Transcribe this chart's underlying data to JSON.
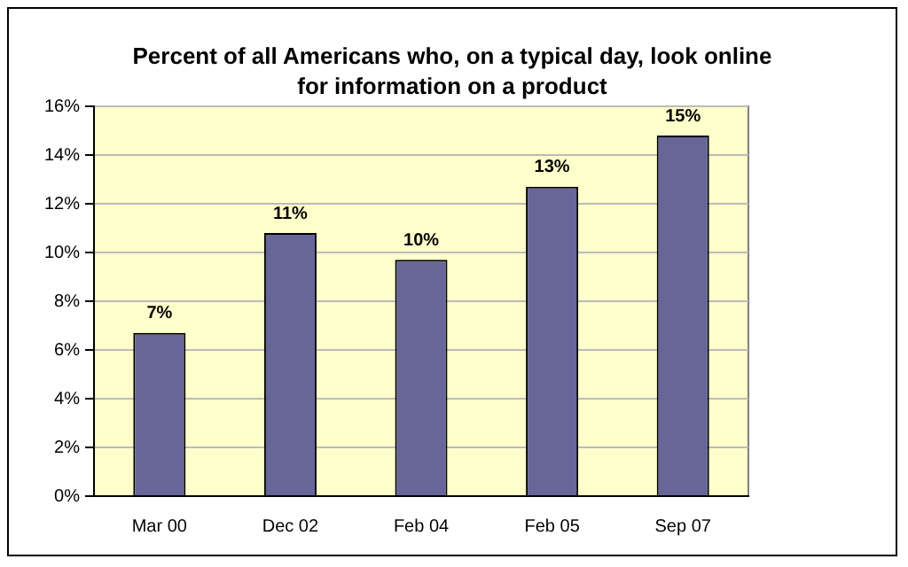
{
  "chart_data": {
    "type": "bar",
    "title": "Percent of all Americans who, on a typical day, look online for information on a product",
    "categories": [
      "Mar 00",
      "Dec 02",
      "Feb 04",
      "Feb 05",
      "Sep 07"
    ],
    "values": [
      6.7,
      10.8,
      9.7,
      12.7,
      14.8
    ],
    "value_labels": [
      "7%",
      "11%",
      "10%",
      "13%",
      "15%"
    ],
    "color": "#666699",
    "ylim": [
      0,
      16
    ],
    "yticks": [
      {
        "value": 0,
        "label": "0%"
      },
      {
        "value": 2,
        "label": "2%"
      },
      {
        "value": 4,
        "label": "4%"
      },
      {
        "value": 6,
        "label": "6%"
      },
      {
        "value": 8,
        "label": "8%"
      },
      {
        "value": 10,
        "label": "10%"
      },
      {
        "value": 12,
        "label": "12%"
      },
      {
        "value": 14,
        "label": "14%"
      },
      {
        "value": 16,
        "label": "16%"
      }
    ],
    "grid": "y",
    "legend": false
  }
}
